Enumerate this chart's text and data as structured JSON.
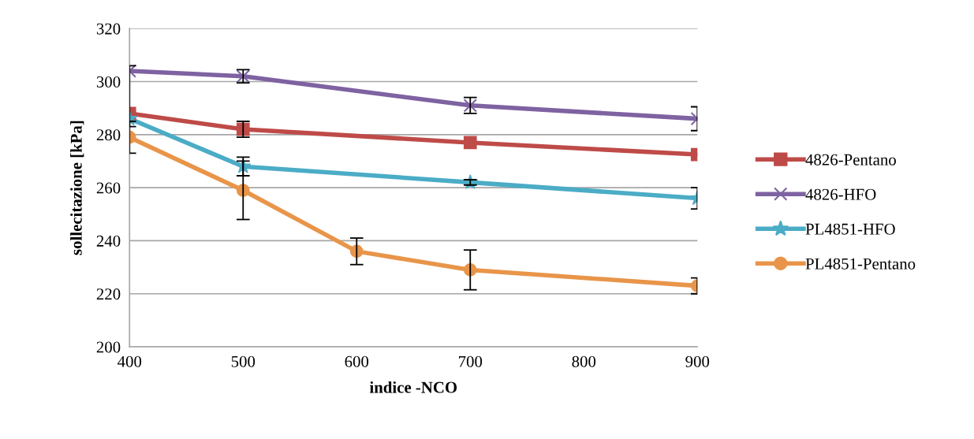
{
  "chart_data": {
    "type": "line",
    "xlabel": "indice -NCO",
    "ylabel": "sollecitazione [kPa]",
    "xlim": [
      400,
      900
    ],
    "xticks": [
      400,
      500,
      600,
      700,
      800,
      900
    ],
    "ylim": [
      200,
      320
    ],
    "yticks": [
      200,
      220,
      240,
      260,
      280,
      300,
      320
    ],
    "grid": "y",
    "legend": "right",
    "series": [
      {
        "name": "4826-Pentano",
        "color": "#be4b48",
        "marker": "square",
        "x": [
          400,
          500,
          700,
          900
        ],
        "values": [
          288,
          282,
          277,
          272.5
        ],
        "errors": [
          null,
          3,
          null,
          null
        ]
      },
      {
        "name": "4826-HFO",
        "color": "#7e62a1",
        "marker": "cross",
        "x": [
          400,
          500,
          700,
          900
        ],
        "values": [
          304,
          302,
          291,
          286
        ],
        "errors": [
          [
            283,
            306
          ],
          2.5,
          3,
          4.5
        ]
      },
      {
        "name": "PL4851-HFO",
        "color": "#4bacc6",
        "marker": "star",
        "x": [
          400,
          500,
          700,
          900
        ],
        "values": [
          286,
          268,
          262,
          256
        ],
        "errors": [
          null,
          3.5,
          1,
          4
        ]
      },
      {
        "name": "PL4851-Pentano",
        "color": "#e8954a",
        "marker": "circle",
        "x": [
          400,
          500,
          600,
          700,
          900
        ],
        "values": [
          279,
          259,
          236,
          229,
          223
        ],
        "errors": [
          [
            273,
            285
          ],
          11,
          5,
          7.5,
          3
        ]
      }
    ]
  }
}
